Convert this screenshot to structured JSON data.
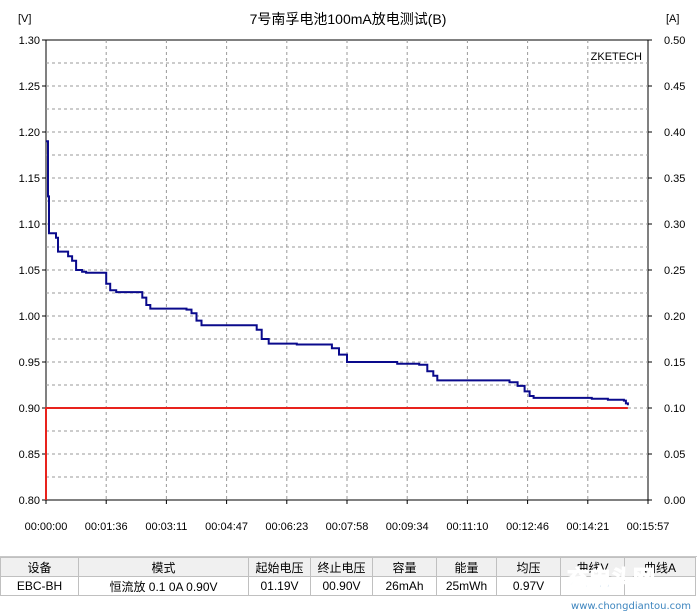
{
  "chart_data": {
    "type": "line",
    "title": "7号南孚电池100mA放电测试(B)",
    "y_left_unit": "[V]",
    "y_right_unit": "[A]",
    "brand": "ZKETECH",
    "ylim_left": [
      0.8,
      1.3
    ],
    "ylim_right": [
      0.0,
      0.5
    ],
    "y_left_ticks": [
      "1.30",
      "1.25",
      "1.20",
      "1.15",
      "1.10",
      "1.05",
      "1.00",
      "0.95",
      "0.90",
      "0.85",
      "0.80"
    ],
    "y_right_ticks": [
      "0.50",
      "0.45",
      "0.40",
      "0.35",
      "0.30",
      "0.25",
      "0.20",
      "0.15",
      "0.10",
      "0.05",
      "0.00"
    ],
    "x_ticks": [
      "00:00:00",
      "00:01:36",
      "00:03:11",
      "00:04:47",
      "00:06:23",
      "00:07:58",
      "00:09:34",
      "00:11:10",
      "00:12:46",
      "00:14:21",
      "00:15:57"
    ],
    "grid": true,
    "series": [
      {
        "color": "#0a0a8c",
        "axis": "left",
        "points": [
          [
            0,
            1.19
          ],
          [
            2,
            1.13
          ],
          [
            3,
            1.09
          ],
          [
            10,
            1.085
          ],
          [
            12,
            1.07
          ],
          [
            22,
            1.065
          ],
          [
            26,
            1.06
          ],
          [
            30,
            1.05
          ],
          [
            36,
            1.048
          ],
          [
            40,
            1.047
          ],
          [
            56,
            1.047
          ],
          [
            60,
            1.035
          ],
          [
            64,
            1.028
          ],
          [
            70,
            1.026
          ],
          [
            90,
            1.026
          ],
          [
            96,
            1.02
          ],
          [
            100,
            1.012
          ],
          [
            104,
            1.008
          ],
          [
            114,
            1.008
          ],
          [
            140,
            1.007
          ],
          [
            145,
            1.003
          ],
          [
            150,
            0.995
          ],
          [
            155,
            0.99
          ],
          [
            200,
            0.99
          ],
          [
            210,
            0.985
          ],
          [
            215,
            0.975
          ],
          [
            222,
            0.97
          ],
          [
            250,
            0.969
          ],
          [
            280,
            0.969
          ],
          [
            285,
            0.965
          ],
          [
            292,
            0.958
          ],
          [
            300,
            0.95
          ],
          [
            340,
            0.95
          ],
          [
            350,
            0.948
          ],
          [
            372,
            0.947
          ],
          [
            380,
            0.94
          ],
          [
            386,
            0.935
          ],
          [
            390,
            0.93
          ],
          [
            440,
            0.93
          ],
          [
            458,
            0.93
          ],
          [
            462,
            0.928
          ],
          [
            470,
            0.924
          ],
          [
            477,
            0.918
          ],
          [
            482,
            0.913
          ],
          [
            486,
            0.911
          ],
          [
            530,
            0.911
          ],
          [
            544,
            0.91
          ],
          [
            560,
            0.909
          ],
          [
            576,
            0.908
          ],
          [
            578,
            0.905
          ],
          [
            580,
            0.903
          ]
        ]
      },
      {
        "color": "#e8231d",
        "axis": "left",
        "points": [
          [
            0,
            0.8
          ],
          [
            0,
            0.9
          ],
          [
            580,
            0.9
          ]
        ]
      }
    ]
  },
  "table": {
    "headers": [
      "设备",
      "模式",
      "起始电压",
      "终止电压",
      "容量",
      "能量",
      "均压",
      "曲线V",
      "曲线A"
    ],
    "row": [
      "EBC-BH",
      "恒流放  0.1 0A  0.90V",
      "01.19V",
      "00.90V",
      "26mAh",
      "25mWh",
      "0.97V",
      "",
      ""
    ]
  },
  "watermark": "www.chongdiantou.com",
  "watermark_logo": "充电头网"
}
